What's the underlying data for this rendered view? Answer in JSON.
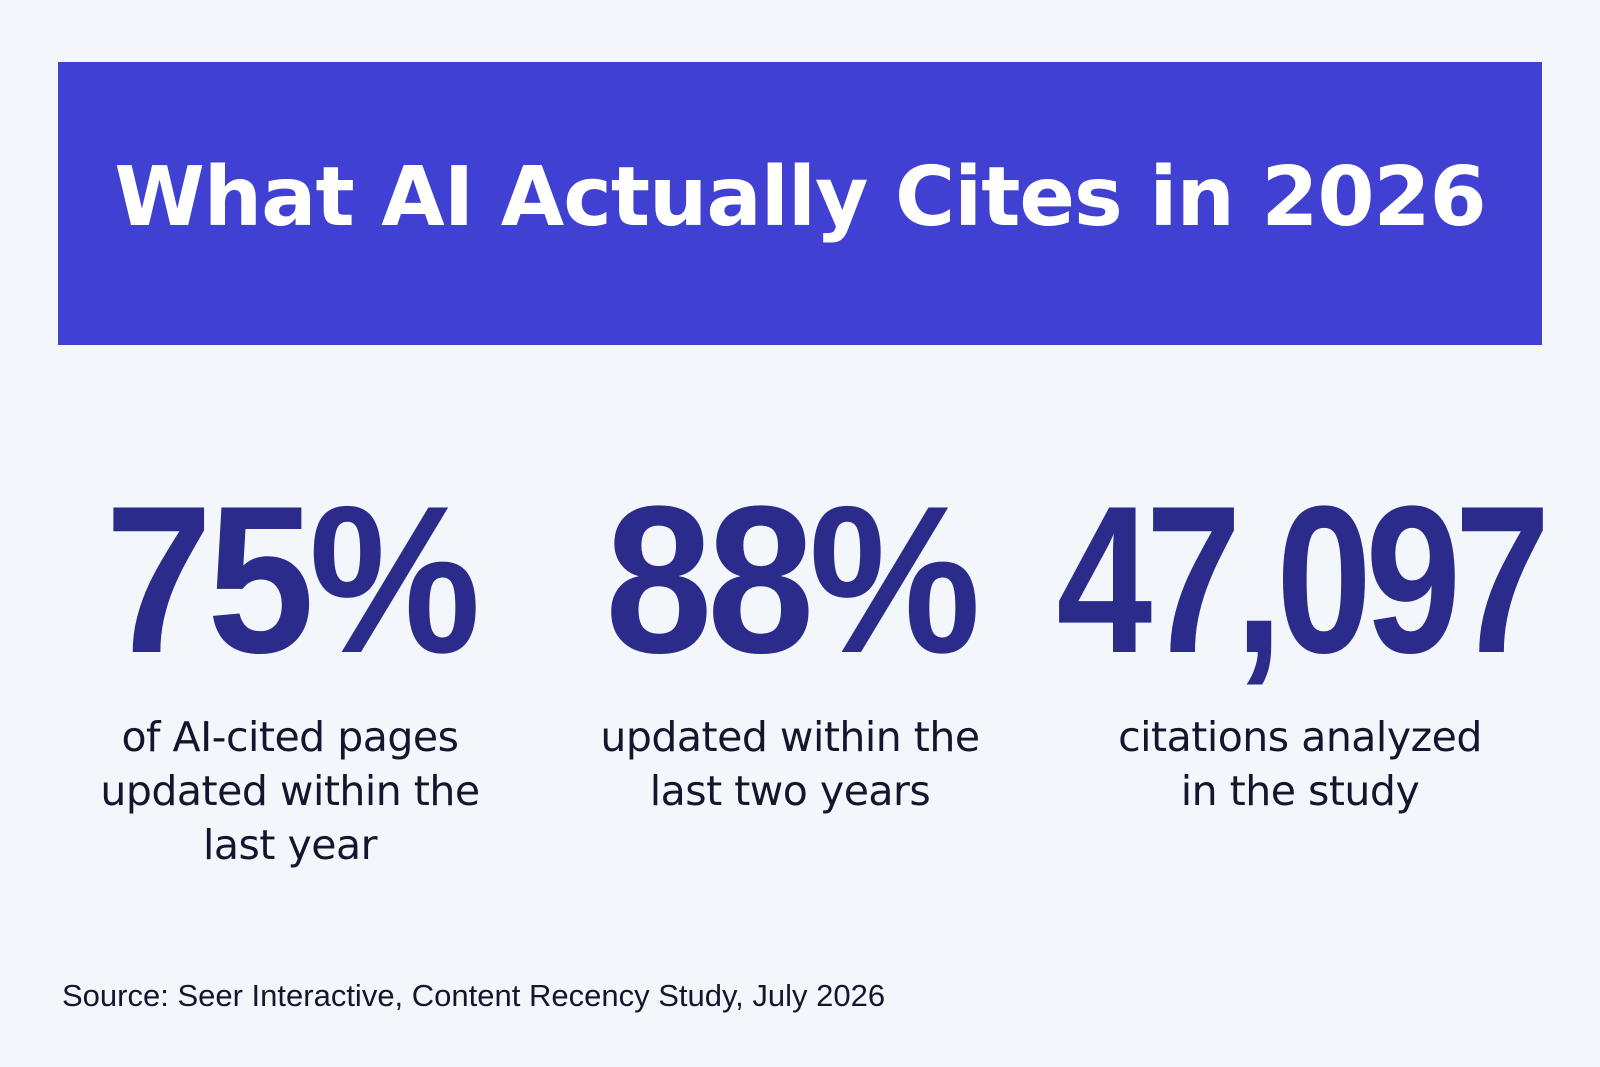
{
  "banner": {
    "title": "What AI Actually Cites in 2026",
    "background_color": "#4040d2"
  },
  "stats": [
    {
      "value": "75%",
      "caption_lines": [
        "of AI-cited pages",
        "updated within the",
        "last year"
      ]
    },
    {
      "value": "88%",
      "caption_lines": [
        "updated within the",
        "last two years"
      ]
    },
    {
      "value": "47,097",
      "caption_lines": [
        "citations analyzed",
        "in the study"
      ]
    }
  ],
  "source": "Source: Seer Interactive, Content Recency Study, July 2026",
  "colors": {
    "page_background": "#f3f6fb",
    "stat_value": "#2a2b8a",
    "text": "#15162e"
  }
}
